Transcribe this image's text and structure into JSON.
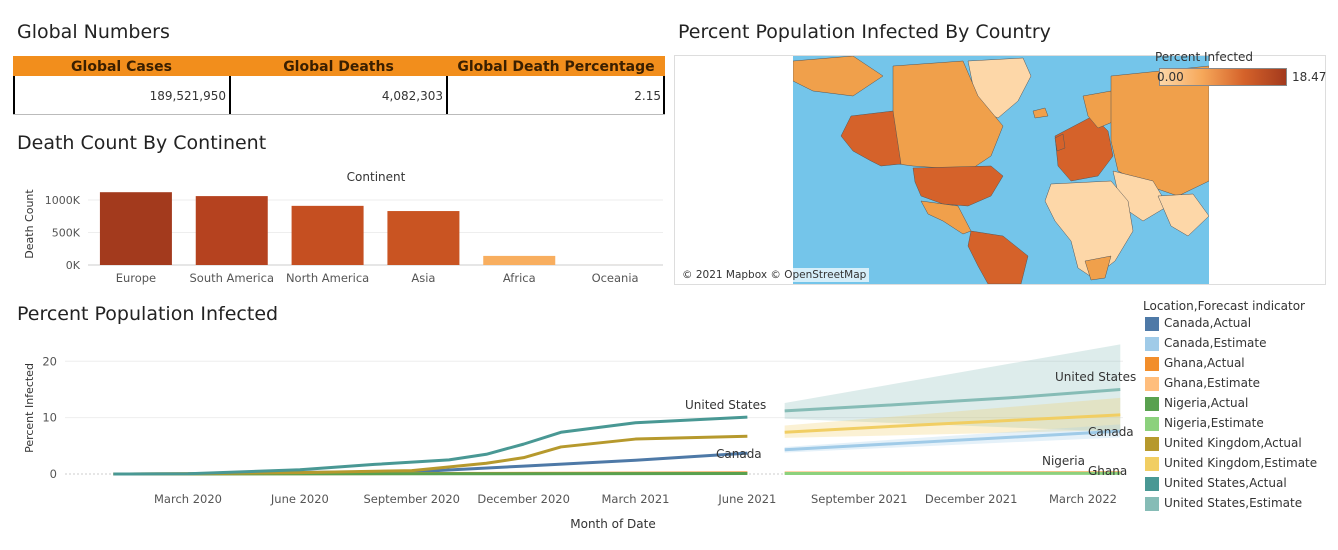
{
  "global": {
    "title": "Global Numbers",
    "headers": [
      "Global Cases",
      "Global Deaths",
      "Global Death Percentage"
    ],
    "values": [
      "189,521,950",
      "4,082,303",
      "2.15"
    ]
  },
  "map": {
    "title": "Percent Population Infected By Country",
    "credit": "© 2021 Mapbox © OpenStreetMap",
    "legend_title": "Percent Infected",
    "legend_min": "0.00",
    "legend_max": "18.47",
    "colors": {
      "ocean": "#74c5ea",
      "low": "#fdd7a8",
      "mid": "#f0a04b",
      "high": "#d5622a",
      "max": "#a33a1d"
    }
  },
  "chart_data": [
    {
      "type": "bar",
      "title": "Death Count By Continent",
      "xlabel": "Continent",
      "ylabel": "Death Count",
      "categories": [
        "Europe",
        "South America",
        "North America",
        "Asia",
        "Africa",
        "Oceania"
      ],
      "values": [
        1120000,
        1060000,
        910000,
        830000,
        140000,
        1000
      ],
      "colors": [
        "#a33a1d",
        "#b5421f",
        "#c54f21",
        "#c95422",
        "#f8ae5f",
        "#fde0bd"
      ],
      "yticks": [
        "0K",
        "500K",
        "1000K"
      ],
      "ylim": [
        0,
        1200000
      ]
    },
    {
      "type": "line",
      "title": "Percent Population Infected",
      "xlabel": "Month of Date",
      "ylabel": "Percent Infected",
      "ylim": [
        0,
        22
      ],
      "yticks": [
        "0",
        "10",
        "20"
      ],
      "xticks": [
        "March 2020",
        "June 2020",
        "September 2020",
        "December 2020",
        "March 2021",
        "June 2021",
        "September 2021",
        "December 2021",
        "March 2022"
      ],
      "legend_title": "Location,Forecast indicator",
      "series": [
        {
          "name": "Canada,Actual",
          "color": "#4e79a7",
          "x": [
            "Jan 2020",
            "Mar 2020",
            "Jun 2020",
            "Sep 2020",
            "Dec 2020",
            "Mar 2021",
            "Jun 2021"
          ],
          "values": [
            0,
            0.02,
            0.28,
            0.38,
            1.4,
            2.45,
            3.7
          ]
        },
        {
          "name": "Canada,Estimate",
          "color": "#a0cbe8",
          "x": [
            "Jul 2021",
            "Oct 2021",
            "Jan 2022",
            "Apr 2022"
          ],
          "values": [
            4.3,
            5.4,
            6.5,
            7.6
          ]
        },
        {
          "name": "Ghana,Actual",
          "color": "#f28e2b",
          "x": [
            "Jan 2020",
            "Jun 2020",
            "Jun 2021"
          ],
          "values": [
            0,
            0.05,
            0.2
          ]
        },
        {
          "name": "Ghana,Estimate",
          "color": "#ffbe7d",
          "x": [
            "Jul 2021",
            "Apr 2022"
          ],
          "values": [
            0.21,
            0.27
          ]
        },
        {
          "name": "Nigeria,Actual",
          "color": "#59a14f",
          "x": [
            "Jan 2020",
            "Jun 2021"
          ],
          "values": [
            0,
            0.08
          ]
        },
        {
          "name": "Nigeria,Estimate",
          "color": "#8cd17d",
          "x": [
            "Jul 2021",
            "Apr 2022"
          ],
          "values": [
            0.09,
            0.12
          ]
        },
        {
          "name": "United Kingdom,Actual",
          "color": "#b6992d",
          "x": [
            "Jan 2020",
            "Mar 2020",
            "Jun 2020",
            "Sep 2020",
            "Nov 2020",
            "Dec 2020",
            "Jan 2021",
            "Mar 2021",
            "Jun 2021"
          ],
          "values": [
            0,
            0.05,
            0.25,
            0.6,
            1.9,
            2.9,
            4.8,
            6.2,
            6.7
          ]
        },
        {
          "name": "United Kingdom,Estimate",
          "color": "#f1ce63",
          "x": [
            "Jul 2021",
            "Oct 2021",
            "Jan 2022",
            "Apr 2022"
          ],
          "values": [
            7.4,
            8.5,
            9.5,
            10.5
          ]
        },
        {
          "name": "United States,Actual",
          "color": "#499894",
          "x": [
            "Jan 2020",
            "Mar 2020",
            "Jun 2020",
            "Aug 2020",
            "Oct 2020",
            "Nov 2020",
            "Dec 2020",
            "Jan 2021",
            "Mar 2021",
            "Jun 2021"
          ],
          "values": [
            0,
            0.05,
            0.75,
            1.7,
            2.5,
            3.5,
            5.3,
            7.4,
            9.1,
            10.1
          ]
        },
        {
          "name": "United States,Estimate",
          "color": "#86bcb6",
          "x": [
            "Jul 2021",
            "Oct 2021",
            "Jan 2022",
            "Apr 2022"
          ],
          "values": [
            11.2,
            12.3,
            13.5,
            15.0
          ]
        }
      ],
      "labels": [
        "United States",
        "Canada",
        "United States",
        "Canada",
        "Nigeria",
        "Ghana"
      ]
    }
  ]
}
